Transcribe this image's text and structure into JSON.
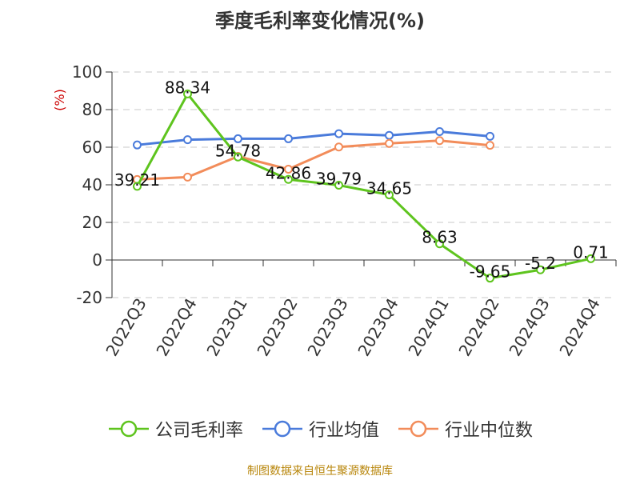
{
  "title": "季度毛利率变化情况(%)",
  "source": "制图数据来自恒生聚源数据库",
  "chart_data": {
    "type": "line",
    "title": "季度毛利率变化情况(%)",
    "ylabel": "(%)",
    "ylim": [
      -20,
      100
    ],
    "yticks": [
      100,
      80,
      60,
      40,
      20,
      0,
      -20
    ],
    "grid": true,
    "legend_position": "bottom",
    "categories": [
      "2022Q3",
      "2022Q4",
      "2023Q1",
      "2023Q2",
      "2023Q3",
      "2023Q4",
      "2024Q1",
      "2024Q2",
      "2024Q3",
      "2024Q4"
    ],
    "series": [
      {
        "name": "公司毛利率",
        "color": "#5ec41e",
        "values": [
          39.21,
          88.34,
          54.78,
          42.86,
          39.79,
          34.65,
          8.63,
          -9.65,
          -5.2,
          0.71
        ],
        "labels": [
          "39.21",
          "88.34",
          "54.78",
          "42.86",
          "39.79",
          "34.65",
          "8.63",
          "-9.65",
          "-5.2",
          "0.71"
        ]
      },
      {
        "name": "行业均值",
        "color": "#4a7bdb",
        "values": [
          61.2,
          64.0,
          64.5,
          64.5,
          67.2,
          66.3,
          68.3,
          65.8,
          null,
          null
        ]
      },
      {
        "name": "行业中位数",
        "color": "#f28c5a",
        "values": [
          42.8,
          44.1,
          55.1,
          48.3,
          60.1,
          62.0,
          63.5,
          61.0,
          null,
          null
        ]
      }
    ]
  }
}
